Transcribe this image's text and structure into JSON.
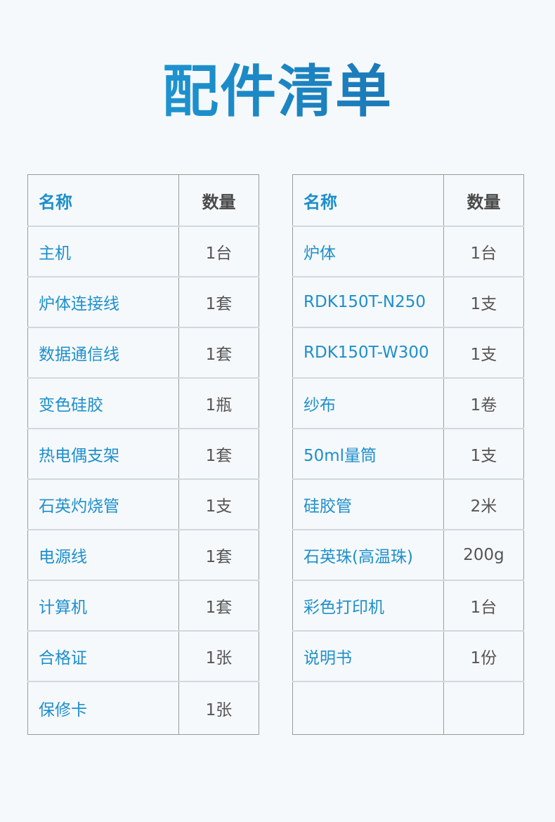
{
  "title": "配件清单",
  "left_table": {
    "headers": {
      "name": "名称",
      "qty": "数量"
    },
    "rows": [
      {
        "name": "主机",
        "qty": "1台"
      },
      {
        "name": "炉体连接线",
        "qty": "1套"
      },
      {
        "name": "数据通信线",
        "qty": "1套"
      },
      {
        "name": "变色硅胶",
        "qty": "1瓶"
      },
      {
        "name": "热电偶支架",
        "qty": "1套"
      },
      {
        "name": "石英灼烧管",
        "qty": "1支"
      },
      {
        "name": "电源线",
        "qty": "1套"
      },
      {
        "name": "计算机",
        "qty": "1套"
      },
      {
        "name": "合格证",
        "qty": "1张"
      },
      {
        "name": "保修卡",
        "qty": "1张"
      }
    ]
  },
  "right_table": {
    "headers": {
      "name": "名称",
      "qty": "数量"
    },
    "rows": [
      {
        "name": "炉体",
        "qty": "1台"
      },
      {
        "name": "RDK150T-N250",
        "qty": "1支"
      },
      {
        "name": "RDK150T-W300",
        "qty": "1支"
      },
      {
        "name": "纱布",
        "qty": "1卷"
      },
      {
        "name": "50ml量筒",
        "qty": "1支"
      },
      {
        "name": "硅胶管",
        "qty": "2米"
      },
      {
        "name": "石英珠(高温珠)",
        "qty": "200g"
      },
      {
        "name": "彩色打印机",
        "qty": "1台"
      },
      {
        "name": "说明书",
        "qty": "1份"
      },
      {
        "name": "",
        "qty": ""
      }
    ]
  }
}
